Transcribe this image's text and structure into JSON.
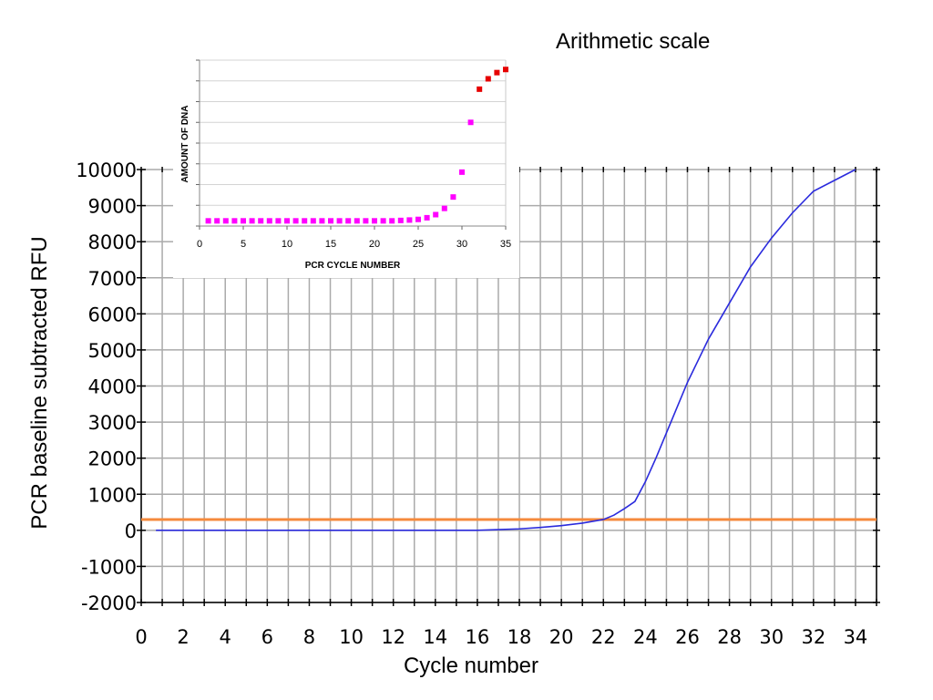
{
  "title": "Arithmetic scale",
  "colors": {
    "curve": "#2b2bdd",
    "threshold": "#f58a3c",
    "grid": "#aaaaaa",
    "inset_early": "#ff00ff",
    "inset_late": "#e60000",
    "inset_grid": "#d4d4d4"
  },
  "chart_data": [
    {
      "type": "line",
      "xlabel": "Cycle number",
      "ylabel": "PCR baseline subtracted RFU",
      "xlim": [
        0,
        35
      ],
      "ylim": [
        -2000,
        10000
      ],
      "x_ticks": [
        0,
        2,
        4,
        6,
        8,
        10,
        12,
        14,
        16,
        18,
        20,
        22,
        24,
        26,
        28,
        30,
        32,
        34
      ],
      "y_ticks": [
        -2000,
        -1000,
        0,
        1000,
        2000,
        3000,
        4000,
        5000,
        6000,
        7000,
        8000,
        9000,
        10000
      ],
      "grid": true,
      "threshold": 300,
      "series": [
        {
          "x": [
            0.7,
            2,
            4,
            6,
            8,
            10,
            12,
            14,
            16,
            17,
            18,
            19,
            20,
            21,
            22,
            22.5,
            23,
            23.5,
            24,
            24.5,
            25,
            26,
            27,
            28,
            29,
            30,
            31,
            32,
            33,
            34
          ],
          "values": [
            0,
            0,
            0,
            0,
            0,
            0,
            0,
            0,
            0,
            20,
            40,
            80,
            130,
            200,
            300,
            420,
            600,
            800,
            1350,
            2000,
            2700,
            4100,
            5300,
            6300,
            7300,
            8100,
            8800,
            9400,
            9700,
            10000
          ]
        }
      ]
    },
    {
      "type": "scatter",
      "xlabel": "PCR CYCLE NUMBER",
      "ylabel": "AMOUNT OF DNA",
      "xlim": [
        0,
        35
      ],
      "ylim": [
        0,
        8
      ],
      "x_ticks": [
        0,
        5,
        10,
        15,
        20,
        25,
        30,
        35
      ],
      "y_gridlines": 8,
      "grid": true,
      "series": [
        {
          "color_role": "early",
          "x": [
            1,
            2,
            3,
            4,
            5,
            6,
            7,
            8,
            9,
            10,
            11,
            12,
            13,
            14,
            15,
            16,
            17,
            18,
            19,
            20,
            21,
            22,
            23,
            24,
            25,
            26,
            27,
            28,
            29,
            30,
            31
          ],
          "values": [
            0.25,
            0.25,
            0.25,
            0.25,
            0.25,
            0.25,
            0.25,
            0.25,
            0.25,
            0.25,
            0.25,
            0.25,
            0.25,
            0.25,
            0.25,
            0.25,
            0.25,
            0.25,
            0.25,
            0.25,
            0.25,
            0.25,
            0.27,
            0.29,
            0.32,
            0.4,
            0.55,
            0.85,
            1.4,
            2.6,
            5.0
          ]
        },
        {
          "color_role": "late",
          "x": [
            32,
            33,
            34,
            35
          ],
          "values": [
            6.6,
            7.1,
            7.4,
            7.55
          ]
        }
      ]
    }
  ]
}
